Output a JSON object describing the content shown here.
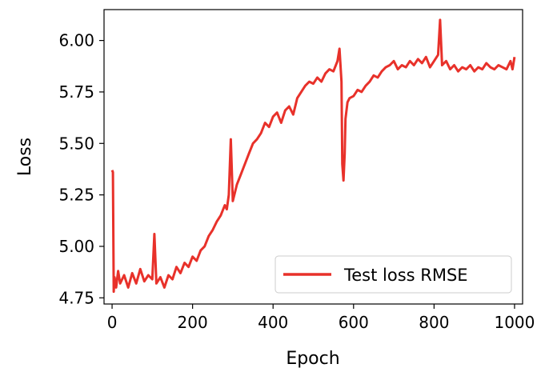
{
  "chart_data": {
    "type": "line",
    "title": "",
    "xlabel": "Epoch",
    "ylabel": "Loss",
    "xlim": [
      -20,
      1020
    ],
    "ylim": [
      4.72,
      6.15
    ],
    "xticks": [
      0,
      200,
      400,
      600,
      800,
      1000
    ],
    "xtick_labels": [
      "0",
      "200",
      "400",
      "600",
      "800",
      "1000"
    ],
    "yticks": [
      4.75,
      5.0,
      5.25,
      5.5,
      5.75,
      6.0
    ],
    "ytick_labels": [
      "4.75",
      "5.00",
      "5.25",
      "5.50",
      "5.75",
      "6.00"
    ],
    "grid": false,
    "legend_position": "lower-right",
    "series": [
      {
        "name": "Test loss RMSE",
        "color": "#e8312a",
        "x": [
          0,
          2,
          4,
          6,
          10,
          15,
          20,
          30,
          40,
          50,
          60,
          70,
          80,
          90,
          100,
          105,
          110,
          120,
          130,
          140,
          150,
          160,
          170,
          180,
          190,
          200,
          210,
          220,
          230,
          240,
          250,
          260,
          270,
          280,
          285,
          290,
          295,
          300,
          310,
          320,
          330,
          340,
          350,
          360,
          370,
          380,
          390,
          400,
          410,
          420,
          430,
          440,
          450,
          460,
          470,
          480,
          490,
          500,
          510,
          520,
          530,
          540,
          550,
          560,
          565,
          570,
          572,
          575,
          578,
          580,
          585,
          590,
          600,
          610,
          620,
          630,
          640,
          650,
          660,
          670,
          680,
          690,
          700,
          710,
          720,
          730,
          740,
          750,
          760,
          770,
          780,
          790,
          800,
          810,
          815,
          820,
          830,
          840,
          850,
          860,
          870,
          880,
          890,
          900,
          910,
          920,
          930,
          940,
          950,
          960,
          970,
          980,
          990,
          995,
          1000
        ],
        "y": [
          5.37,
          5.36,
          4.78,
          4.85,
          4.8,
          4.88,
          4.82,
          4.86,
          4.8,
          4.87,
          4.82,
          4.89,
          4.83,
          4.86,
          4.84,
          5.06,
          4.82,
          4.85,
          4.8,
          4.86,
          4.84,
          4.9,
          4.87,
          4.92,
          4.9,
          4.95,
          4.93,
          4.98,
          5.0,
          5.05,
          5.08,
          5.12,
          5.15,
          5.2,
          5.18,
          5.25,
          5.52,
          5.22,
          5.3,
          5.35,
          5.4,
          5.45,
          5.5,
          5.52,
          5.55,
          5.6,
          5.58,
          5.63,
          5.65,
          5.6,
          5.66,
          5.68,
          5.64,
          5.72,
          5.75,
          5.78,
          5.8,
          5.79,
          5.82,
          5.8,
          5.84,
          5.86,
          5.85,
          5.9,
          5.96,
          5.8,
          5.4,
          5.32,
          5.45,
          5.62,
          5.7,
          5.72,
          5.73,
          5.76,
          5.75,
          5.78,
          5.8,
          5.83,
          5.82,
          5.85,
          5.87,
          5.88,
          5.9,
          5.86,
          5.88,
          5.87,
          5.9,
          5.88,
          5.91,
          5.89,
          5.92,
          5.87,
          5.9,
          5.93,
          6.1,
          5.88,
          5.9,
          5.86,
          5.88,
          5.85,
          5.87,
          5.86,
          5.88,
          5.85,
          5.87,
          5.86,
          5.89,
          5.87,
          5.86,
          5.88,
          5.87,
          5.86,
          5.9,
          5.86,
          5.92
        ]
      }
    ]
  }
}
